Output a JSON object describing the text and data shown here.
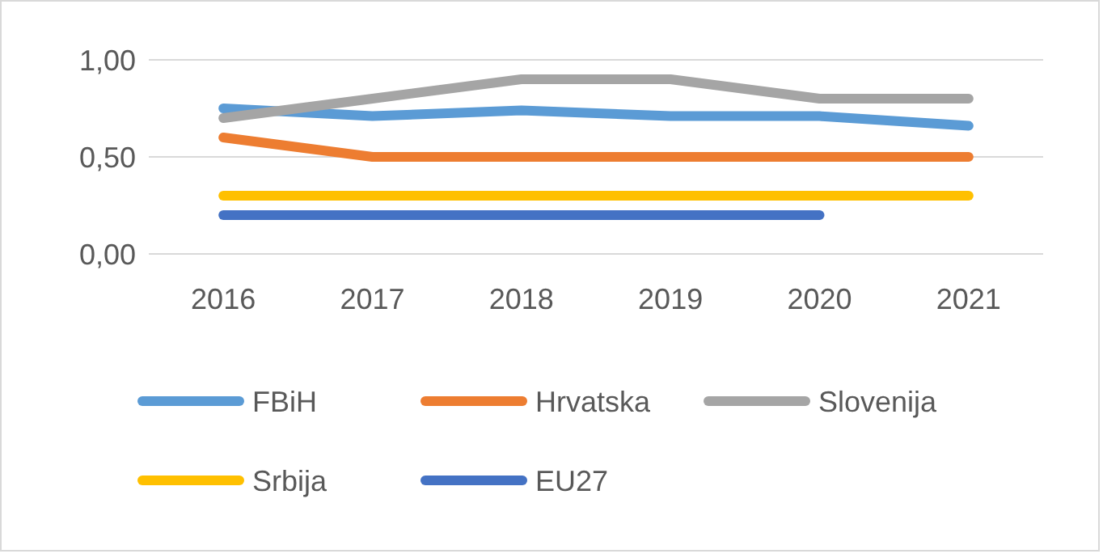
{
  "chart_data": {
    "type": "line",
    "categories": [
      "2016",
      "2017",
      "2018",
      "2019",
      "2020",
      "2021"
    ],
    "series": [
      {
        "name": "FBiH",
        "color": "#5b9bd5",
        "values": [
          0.75,
          0.71,
          0.74,
          0.71,
          0.71,
          0.66
        ]
      },
      {
        "name": "Hrvatska",
        "color": "#ed7d31",
        "values": [
          0.6,
          0.5,
          0.5,
          0.5,
          0.5,
          0.5
        ]
      },
      {
        "name": "Slovenija",
        "color": "#a5a5a5",
        "values": [
          0.7,
          0.8,
          0.9,
          0.9,
          0.8,
          0.8
        ]
      },
      {
        "name": "Srbija",
        "color": "#ffc000",
        "values": [
          0.3,
          0.3,
          0.3,
          0.3,
          0.3,
          0.3
        ]
      },
      {
        "name": "EU27",
        "color": "#4472c4",
        "values": [
          0.2,
          0.2,
          0.2,
          0.2,
          0.2,
          null
        ]
      }
    ],
    "ylim": [
      0,
      1
    ],
    "yticks": [
      {
        "value": 0,
        "label": "0,00"
      },
      {
        "value": 0.5,
        "label": "0,50"
      },
      {
        "value": 1,
        "label": "1,00"
      }
    ],
    "grid": "y",
    "legend": "bottom",
    "marker": "none",
    "line_style": "solid"
  }
}
